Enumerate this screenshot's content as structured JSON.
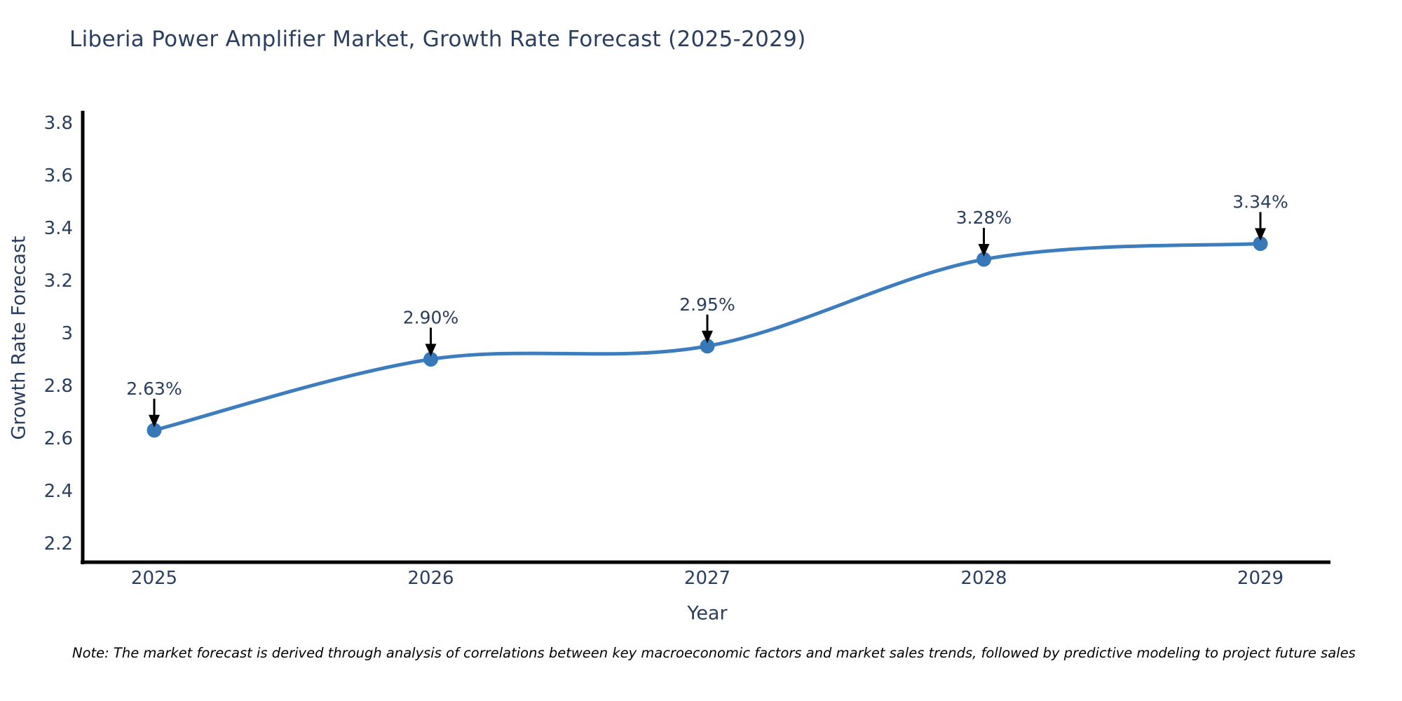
{
  "chart_data": {
    "type": "line",
    "title": "Liberia Power Amplifier Market, Growth Rate Forecast (2025-2029)",
    "xlabel": "Year",
    "ylabel": "Growth Rate Forecast",
    "categories": [
      "2025",
      "2026",
      "2027",
      "2028",
      "2029"
    ],
    "series": [
      {
        "name": "Growth Rate Forecast",
        "values": [
          2.63,
          2.9,
          2.95,
          3.28,
          3.34
        ],
        "point_labels": [
          "2.63%",
          "2.90%",
          "2.95%",
          "3.28%",
          "3.34%"
        ]
      }
    ],
    "y_ticks": [
      "2.2",
      "2.4",
      "2.6",
      "2.8",
      "3",
      "3.2",
      "3.4",
      "3.6",
      "3.8"
    ],
    "y_tick_values": [
      2.2,
      2.4,
      2.6,
      2.8,
      3.0,
      3.2,
      3.4,
      3.6,
      3.8
    ],
    "ylim": [
      2.12,
      3.85
    ],
    "line_shape": "spline",
    "grid": false,
    "legend_position": "none",
    "colors": {
      "line": "#3e7dbd",
      "marker": "#3779b8",
      "axis": "#000000",
      "text": "#2a3f5f",
      "annotation_arrow": "#000000",
      "background": "#ffffff"
    }
  },
  "note": "Note: The market forecast is derived through analysis of correlations between key macroeconomic factors and market sales trends, followed by predictive modeling to project future sales"
}
